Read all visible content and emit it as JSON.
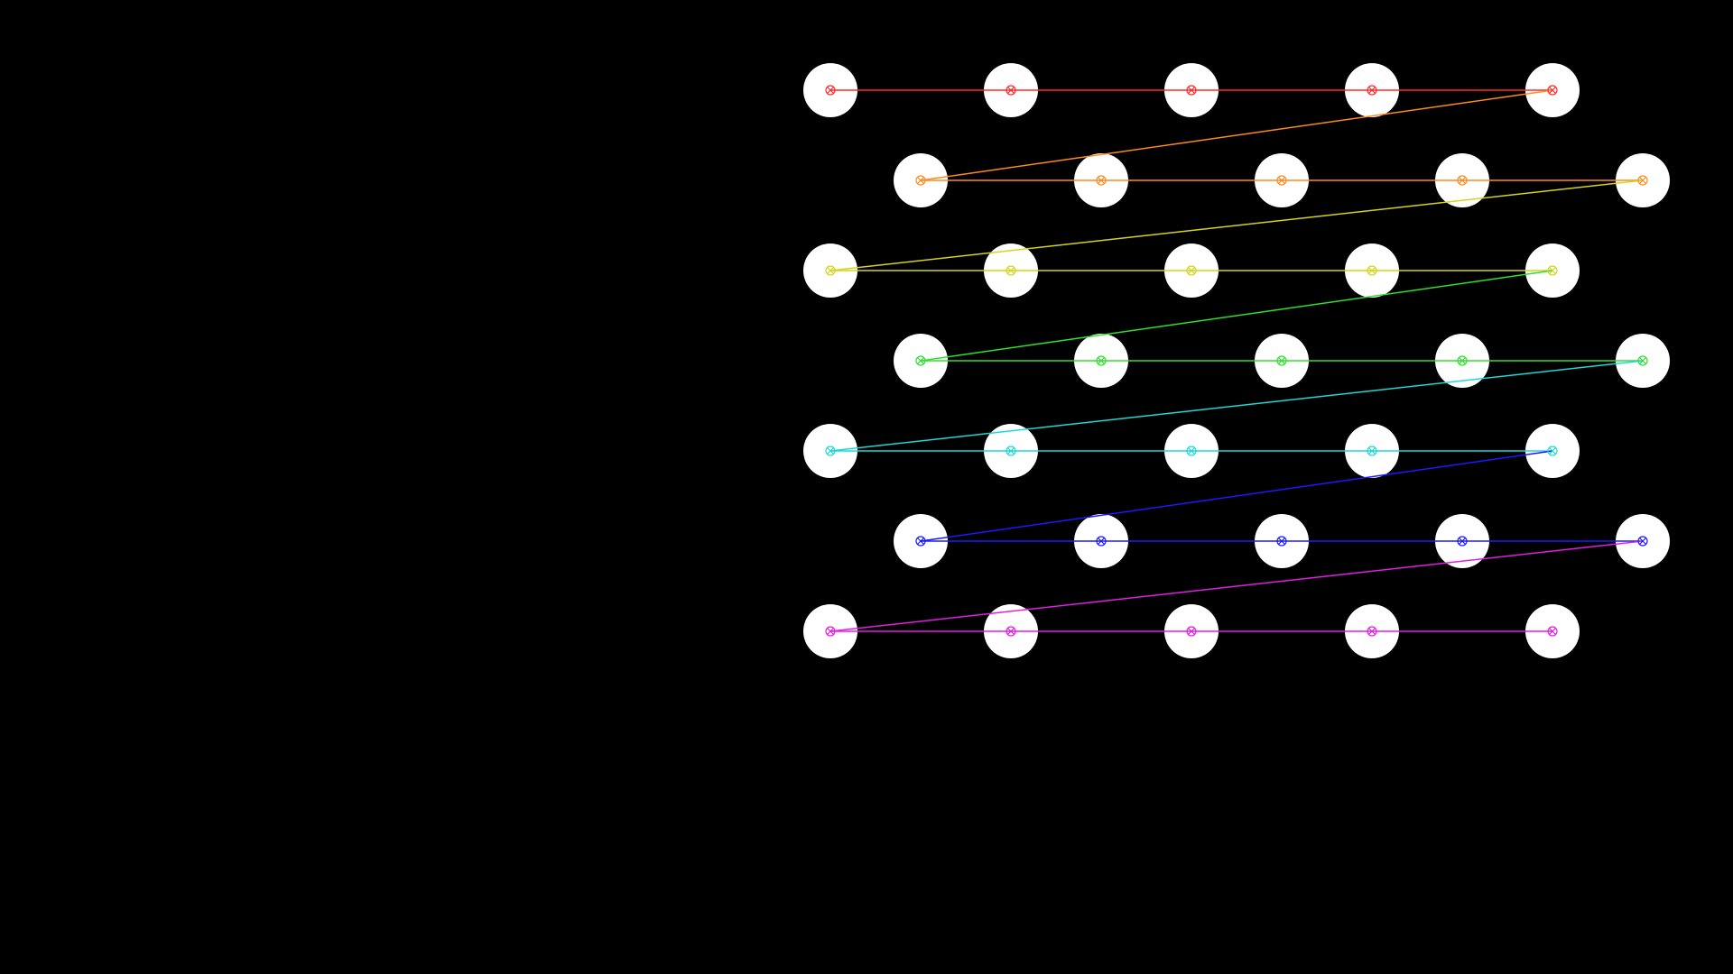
{
  "pattern": {
    "description_free": true,
    "rows": 7,
    "circles_per_row": 5,
    "row_colors": [
      "#ff2a2a",
      "#ff8a1e",
      "#d4d41c",
      "#2ee02e",
      "#1ed8d8",
      "#1a1aff",
      "#e21ee2"
    ],
    "connector_colors": [
      "#ff8a1e",
      "#d4d41c",
      "#2ee02e",
      "#1ed8d8",
      "#1a1aff",
      "#e21ee2"
    ],
    "circle_fill": "#ffffff",
    "background": "#000000",
    "marker_icon": "circled-x-icon"
  }
}
